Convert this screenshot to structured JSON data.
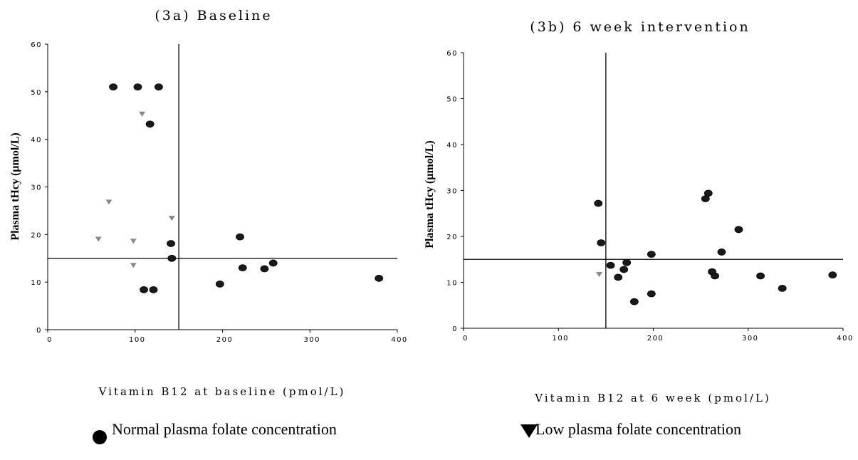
{
  "chart_data": [
    {
      "type": "scatter",
      "title": "(3a) Baseline",
      "xlabel": "Vitamin B12 at baseline (pmol/L)",
      "ylabel": "Plasma tHcy (µmol/L)",
      "xlim": [
        0,
        400
      ],
      "ylim": [
        0,
        60
      ],
      "xticks": [
        0,
        100,
        200,
        300,
        400
      ],
      "yticks": [
        0,
        10,
        20,
        30,
        40,
        50,
        60
      ],
      "grid": false,
      "reference_lines": {
        "x": 150,
        "y": 15
      },
      "series": [
        {
          "marker": "circle",
          "points": [
            [
              75,
              51
            ],
            [
              103,
              51
            ],
            [
              127,
              51
            ],
            [
              117,
              43.2
            ],
            [
              141,
              18.1
            ],
            [
              142,
              15
            ],
            [
              110,
              8.4
            ],
            [
              121,
              8.4
            ],
            [
              197,
              9.6
            ],
            [
              220,
              19.5
            ],
            [
              223,
              13
            ],
            [
              248,
              12.8
            ],
            [
              258,
              14
            ],
            [
              379,
              10.8
            ]
          ]
        },
        {
          "marker": "triangle",
          "points": [
            [
              108,
              45.3
            ],
            [
              70,
              26.8
            ],
            [
              142,
              23.4
            ],
            [
              58,
              19
            ],
            [
              98,
              18.6
            ],
            [
              98,
              13.5
            ]
          ]
        }
      ]
    },
    {
      "type": "scatter",
      "title": "(3b) 6 week intervention",
      "xlabel": "Vitamin B12 at 6 week (pmol/L)",
      "ylabel": "Plasma tHcy (µmol/L)",
      "xlim": [
        0,
        400
      ],
      "ylim": [
        0,
        60
      ],
      "xticks": [
        0,
        100,
        200,
        300,
        400
      ],
      "yticks": [
        0,
        10,
        20,
        30,
        40,
        50,
        60
      ],
      "grid": false,
      "reference_lines": {
        "x": 150,
        "y": 15
      },
      "series": [
        {
          "marker": "circle",
          "points": [
            [
              142,
              27.2
            ],
            [
              145,
              18.6
            ],
            [
              155,
              13.7
            ],
            [
              163,
              11.1
            ],
            [
              169,
              12.8
            ],
            [
              172,
              14.3
            ],
            [
              180,
              5.8
            ],
            [
              198,
              16.1
            ],
            [
              198,
              7.5
            ],
            [
              255,
              28.2
            ],
            [
              258,
              29.4
            ],
            [
              262,
              12.3
            ],
            [
              265,
              11.4
            ],
            [
              272,
              16.6
            ],
            [
              290,
              21.5
            ],
            [
              313,
              11.4
            ],
            [
              336,
              8.7
            ],
            [
              389,
              11.6
            ]
          ]
        },
        {
          "marker": "triangle",
          "points": [
            [
              143,
              11.7
            ]
          ]
        }
      ]
    }
  ],
  "legend": {
    "normal": "Normal plasma folate concentration",
    "low": "Low plasma folate concentration"
  }
}
